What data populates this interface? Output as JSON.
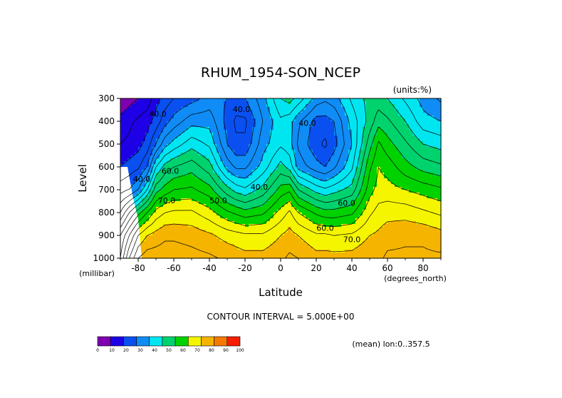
{
  "chart_data": {
    "type": "heatmap",
    "title": "RHUM_1954-SON_NCEP",
    "units_label": "(units:%)",
    "xlabel": "Latitude",
    "ylabel": "Level",
    "x_unit_label": "(degrees_north)",
    "y_unit_label": "(millibar)",
    "xlim": [
      -90,
      90
    ],
    "ylim": [
      1000,
      300
    ],
    "x_ticks": [
      -80,
      -60,
      -40,
      -20,
      0,
      20,
      40,
      60,
      80
    ],
    "y_ticks": [
      300,
      400,
      500,
      600,
      700,
      800,
      900,
      1000
    ],
    "contour_interval_text": "CONTOUR INTERVAL = 5.000E+00",
    "mean_text": "(mean) lon:0..357.5",
    "contour_labels": [
      {
        "text": "40.0",
        "lat": -69,
        "lev": 380
      },
      {
        "text": "40.0",
        "lat": -78,
        "lev": 665
      },
      {
        "text": "60.0",
        "lat": -62,
        "lev": 630
      },
      {
        "text": "70.0",
        "lat": -64,
        "lev": 760
      },
      {
        "text": "50.0",
        "lat": -35,
        "lev": 760
      },
      {
        "text": "40.0",
        "lat": -22,
        "lev": 360
      },
      {
        "text": "40.0",
        "lat": -12,
        "lev": 700
      },
      {
        "text": "40.0",
        "lat": 15,
        "lev": 420
      },
      {
        "text": "60.0",
        "lat": 37,
        "lev": 770
      },
      {
        "text": "60.0",
        "lat": 25,
        "lev": 880
      },
      {
        "text": "70.0",
        "lat": 40,
        "lev": 930
      }
    ],
    "colorbar": {
      "levels": [
        0,
        10,
        20,
        30,
        40,
        50,
        60,
        70,
        80,
        90,
        100
      ],
      "colors": [
        "#7f00b0",
        "#1e00e6",
        "#0a50f0",
        "#0f8cf5",
        "#00e6f0",
        "#00d26e",
        "#00d200",
        "#f5f500",
        "#f5b400",
        "#f57800",
        "#f51e00"
      ]
    },
    "levels_mb": [
      300,
      350,
      400,
      450,
      500,
      550,
      600,
      650,
      700,
      750,
      800,
      850,
      900,
      950,
      1000
    ],
    "latitudes": [
      -90,
      -85,
      -80,
      -75,
      -70,
      -65,
      -60,
      -55,
      -50,
      -45,
      -40,
      -35,
      -30,
      -25,
      -20,
      -15,
      -10,
      -5,
      0,
      5,
      10,
      15,
      20,
      25,
      30,
      35,
      40,
      45,
      50,
      55,
      60,
      65,
      70,
      75,
      80,
      85,
      90
    ],
    "profiles": {
      "lat_nodes": [
        -90,
        -85,
        -80,
        -75,
        -70,
        -65,
        -60,
        -50,
        -40,
        -30,
        -25,
        -20,
        -10,
        0,
        5,
        10,
        20,
        25,
        30,
        40,
        50,
        55,
        60,
        70,
        80,
        90
      ],
      "lev_nodes": [
        300,
        400,
        500,
        600,
        700,
        800,
        900,
        1000
      ],
      "rh": [
        [
          5,
          12,
          15,
          20,
          28,
          40,
          55,
          60
        ],
        [
          8,
          14,
          16,
          22,
          30,
          50,
          65,
          75
        ],
        [
          10,
          16,
          18,
          24,
          35,
          58,
          75,
          85
        ],
        [
          12,
          18,
          22,
          30,
          45,
          65,
          80,
          88
        ],
        [
          18,
          22,
          30,
          45,
          58,
          72,
          82,
          88
        ],
        [
          22,
          28,
          38,
          52,
          62,
          75,
          84,
          88
        ],
        [
          25,
          32,
          42,
          55,
          65,
          76,
          84,
          88
        ],
        [
          28,
          38,
          48,
          58,
          66,
          76,
          83,
          87
        ],
        [
          32,
          38,
          44,
          52,
          62,
          72,
          81,
          86
        ],
        [
          30,
          28,
          30,
          38,
          52,
          66,
          78,
          84
        ],
        [
          28,
          24,
          26,
          34,
          48,
          64,
          77,
          83
        ],
        [
          30,
          24,
          26,
          34,
          46,
          62,
          76,
          82
        ],
        [
          38,
          35,
          38,
          42,
          52,
          64,
          76,
          82
        ],
        [
          50,
          44,
          44,
          52,
          62,
          72,
          80,
          84
        ],
        [
          52,
          42,
          42,
          48,
          64,
          76,
          82,
          86
        ],
        [
          48,
          36,
          34,
          38,
          55,
          70,
          80,
          85
        ],
        [
          38,
          28,
          26,
          32,
          48,
          64,
          76,
          82
        ],
        [
          36,
          28,
          24,
          30,
          46,
          62,
          76,
          82
        ],
        [
          38,
          30,
          28,
          34,
          48,
          62,
          75,
          82
        ],
        [
          46,
          42,
          40,
          44,
          52,
          64,
          76,
          82
        ],
        [
          52,
          52,
          58,
          64,
          68,
          74,
          80,
          84
        ],
        [
          52,
          58,
          66,
          70,
          72,
          77,
          81,
          84
        ],
        [
          50,
          56,
          62,
          68,
          72,
          78,
          83,
          86
        ],
        [
          44,
          50,
          56,
          62,
          70,
          78,
          84,
          86
        ],
        [
          38,
          42,
          50,
          58,
          68,
          76,
          84,
          86
        ],
        [
          34,
          40,
          48,
          56,
          66,
          74,
          82,
          86
        ]
      ]
    }
  }
}
